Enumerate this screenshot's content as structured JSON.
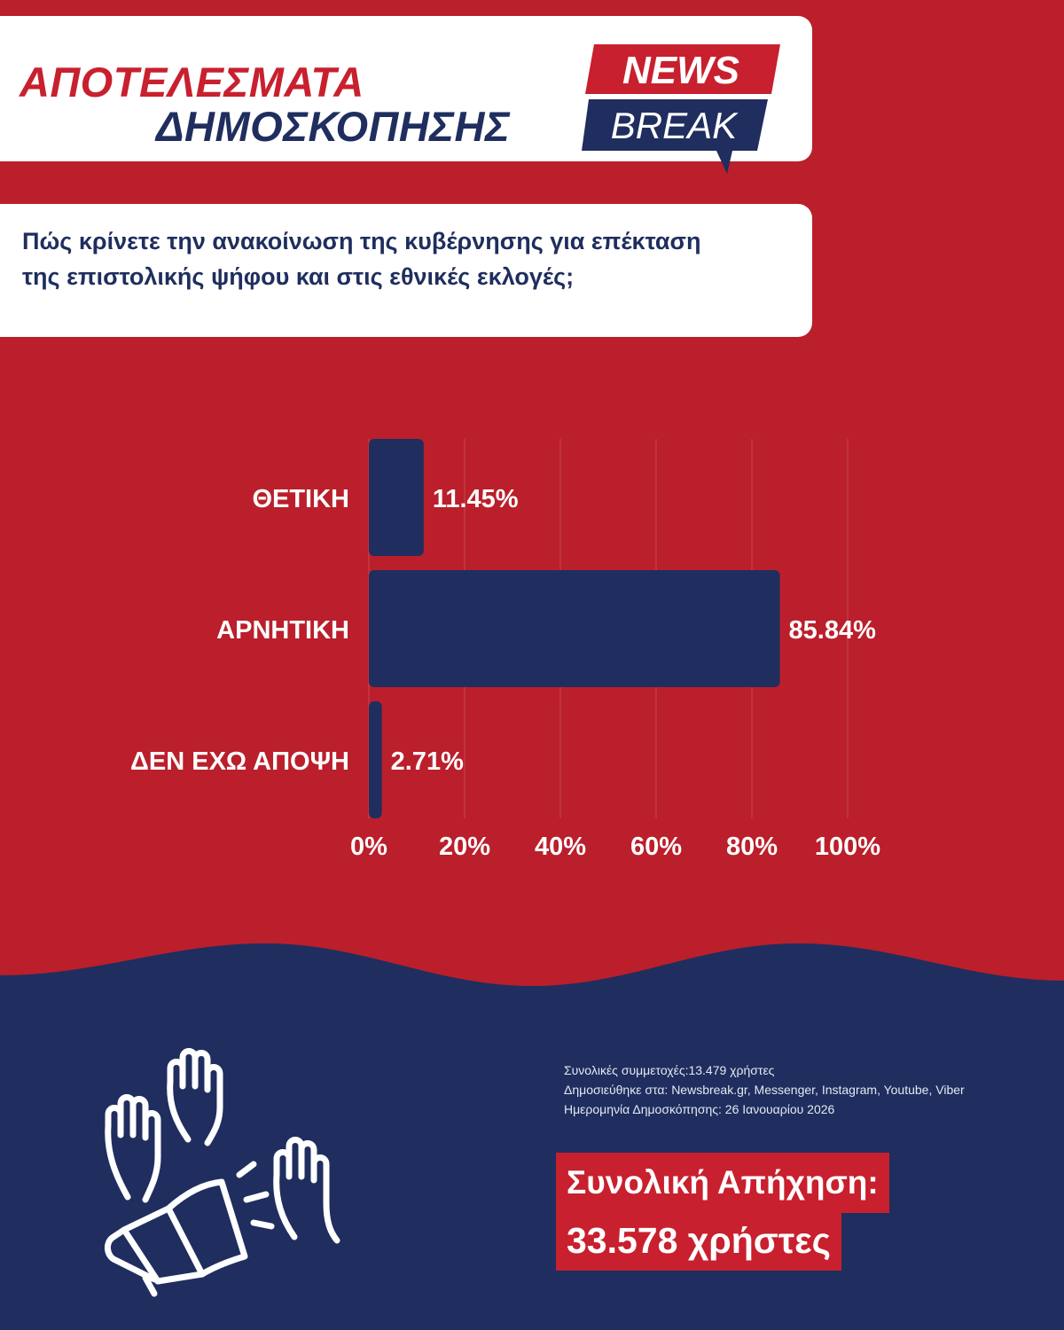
{
  "header": {
    "title_line1": "ΑΠΟΤΕΛΕΣΜΑΤΑ",
    "title_line2": "ΔΗΜΟΣΚΟΠΗΣΗΣ",
    "logo_word1": "NEWS",
    "logo_word2": "BREAK"
  },
  "question": "Πώς κρίνετε την ανακοίνωση της κυβέρνησης για επέκταση της επιστολικής ψήφου και στις εθνικές εκλογές;",
  "colors": {
    "background_red": "#ba1f2b",
    "accent_red": "#c8202e",
    "navy": "#1f2e5e",
    "footer_navy": "#1f2e5e"
  },
  "chart_data": {
    "type": "bar",
    "orientation": "horizontal",
    "categories": [
      "ΘΕΤΙΚΗ",
      "ΑΡΝΗΤΙΚΗ",
      "ΔΕΝ ΕΧΩ ΑΠΟΨΗ"
    ],
    "values": [
      11.45,
      85.84,
      2.71
    ],
    "value_labels": [
      "11.45%",
      "85.84%",
      "2.71%"
    ],
    "xlim": [
      0,
      100
    ],
    "xticks": [
      "0%",
      "20%",
      "40%",
      "60%",
      "80%",
      "100%"
    ],
    "grid": true,
    "bar_color": "#1f2e5e"
  },
  "footer": {
    "participants": "Συνολικές συμμετοχές:13.479 χρήστες",
    "published": "Δημοσιεύθηκε στα: Newsbreak.gr, Messenger, Instagram, Youtube, Viber",
    "date": "Ημερομηνία Δημοσκόπησης: 26 Ιανουαρίου 2026",
    "reach_label": "Συνολική Απήχηση:",
    "reach_value": "33.578 χρήστες",
    "icon": "raised-hands-megaphone-icon"
  }
}
